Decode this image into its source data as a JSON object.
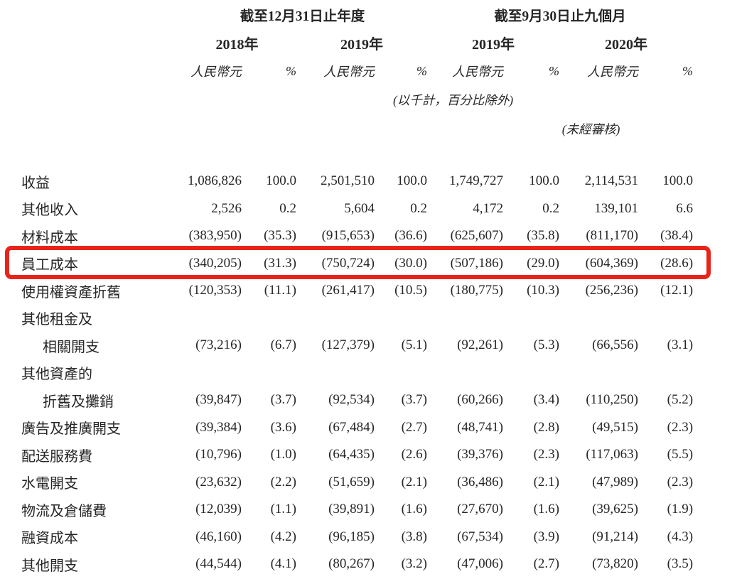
{
  "table": {
    "group_headers": [
      "截至12月31日止年度",
      "截至9月30日止九個月"
    ],
    "year_headers": [
      "2018年",
      "2019年",
      "2019年",
      "2020年"
    ],
    "unit_headers": [
      "人民幣元",
      "%",
      "人民幣元",
      "%",
      "人民幣元",
      "%",
      "人民幣元",
      "%"
    ],
    "note_thousands": "(以千計，百分比除外)",
    "note_unaudited": "(未經審核)",
    "highlight_color": "#e8241a",
    "text_color": "#262626",
    "rows": [
      {
        "label": "收益",
        "indent": false,
        "highlight": false,
        "values": [
          "1,086,826",
          "100.0",
          "2,501,510",
          "100.0",
          "1,749,727",
          "100.0",
          "2,114,531",
          "100.0"
        ]
      },
      {
        "label": "其他收入",
        "indent": false,
        "highlight": false,
        "values": [
          "2,526",
          "0.2",
          "5,604",
          "0.2",
          "4,172",
          "0.2",
          "139,101",
          "6.6"
        ]
      },
      {
        "label": "材料成本",
        "indent": false,
        "highlight": false,
        "values": [
          "(383,950)",
          "(35.3)",
          "(915,653)",
          "(36.6)",
          "(625,607)",
          "(35.8)",
          "(811,170)",
          "(38.4)"
        ]
      },
      {
        "label": "員工成本",
        "indent": false,
        "highlight": true,
        "values": [
          "(340,205)",
          "(31.3)",
          "(750,724)",
          "(30.0)",
          "(507,186)",
          "(29.0)",
          "(604,369)",
          "(28.6)"
        ]
      },
      {
        "label": "使用權資產折舊",
        "indent": false,
        "highlight": false,
        "values": [
          "(120,353)",
          "(11.1)",
          "(261,417)",
          "(10.5)",
          "(180,775)",
          "(10.3)",
          "(256,236)",
          "(12.1)"
        ]
      },
      {
        "label": "其他租金及",
        "indent": false,
        "highlight": false,
        "values": [
          "",
          "",
          "",
          "",
          "",
          "",
          "",
          ""
        ]
      },
      {
        "label": "相關開支",
        "indent": true,
        "highlight": false,
        "values": [
          "(73,216)",
          "(6.7)",
          "(127,379)",
          "(5.1)",
          "(92,261)",
          "(5.3)",
          "(66,556)",
          "(3.1)"
        ]
      },
      {
        "label": "其他資產的",
        "indent": false,
        "highlight": false,
        "values": [
          "",
          "",
          "",
          "",
          "",
          "",
          "",
          ""
        ]
      },
      {
        "label": "折舊及攤銷",
        "indent": true,
        "highlight": false,
        "values": [
          "(39,847)",
          "(3.7)",
          "(92,534)",
          "(3.7)",
          "(60,266)",
          "(3.4)",
          "(110,250)",
          "(5.2)"
        ]
      },
      {
        "label": "廣告及推廣開支",
        "indent": false,
        "highlight": false,
        "values": [
          "(39,384)",
          "(3.6)",
          "(67,484)",
          "(2.7)",
          "(48,741)",
          "(2.8)",
          "(49,515)",
          "(2.3)"
        ]
      },
      {
        "label": "配送服務費",
        "indent": false,
        "highlight": false,
        "values": [
          "(10,796)",
          "(1.0)",
          "(64,435)",
          "(2.6)",
          "(39,376)",
          "(2.3)",
          "(117,063)",
          "(5.5)"
        ]
      },
      {
        "label": "水電開支",
        "indent": false,
        "highlight": false,
        "values": [
          "(23,632)",
          "(2.2)",
          "(51,659)",
          "(2.1)",
          "(36,486)",
          "(2.1)",
          "(47,989)",
          "(2.3)"
        ]
      },
      {
        "label": "物流及倉儲費",
        "indent": false,
        "highlight": false,
        "values": [
          "(12,039)",
          "(1.1)",
          "(39,891)",
          "(1.6)",
          "(27,670)",
          "(1.6)",
          "(39,625)",
          "(1.9)"
        ]
      },
      {
        "label": "融資成本",
        "indent": false,
        "highlight": false,
        "values": [
          "(46,160)",
          "(4.2)",
          "(96,185)",
          "(3.8)",
          "(67,534)",
          "(3.9)",
          "(91,214)",
          "(4.3)"
        ]
      },
      {
        "label": "其他開支",
        "indent": false,
        "highlight": false,
        "values": [
          "(44,544)",
          "(4.1)",
          "(80,267)",
          "(3.2)",
          "(47,006)",
          "(2.7)",
          "(73,820)",
          "(3.5)"
        ]
      }
    ]
  }
}
